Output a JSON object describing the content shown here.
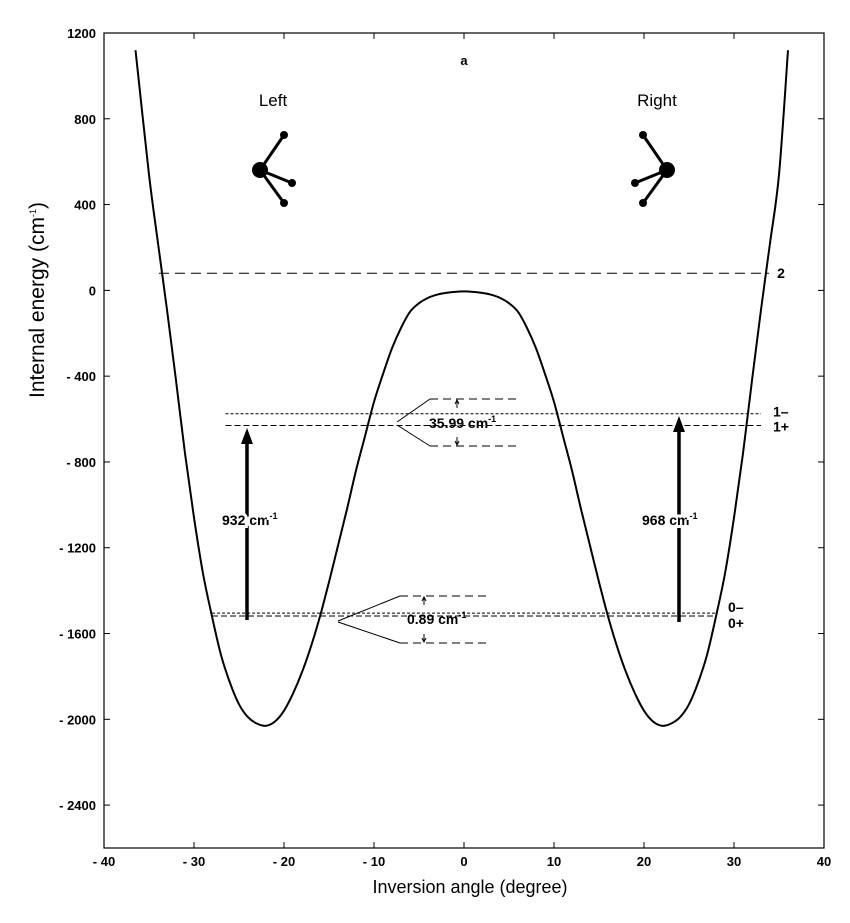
{
  "chart_data": {
    "type": "line",
    "title": "a",
    "xlabel": "Inversion  angle (degree)",
    "ylabel": "Internal energy (cm",
    "ylabel_sup": "-1",
    "ylabel_close": ")",
    "xlim": [
      -40,
      40
    ],
    "ylim": [
      -2600,
      1200
    ],
    "x_ticks": [
      -40,
      -30,
      -20,
      -10,
      0,
      10,
      20,
      30,
      40
    ],
    "x_tick_labels": [
      "- 40",
      "- 30",
      "- 20",
      "- 10",
      "0",
      "10",
      "20",
      "30",
      "40"
    ],
    "y_ticks": [
      1200,
      800,
      400,
      0,
      -400,
      -800,
      -1200,
      -1600,
      -2000,
      -2400
    ],
    "y_tick_labels": [
      "1200",
      "800",
      "400",
      "0",
      "- 400",
      "- 800",
      "- 1200",
      "- 1600",
      "- 2000",
      "- 2400"
    ],
    "grid": false,
    "series": [
      {
        "x": [
          -36.5,
          -35,
          -34,
          -33,
          -32,
          -31,
          -30,
          -29,
          -28,
          -27,
          -26,
          -25,
          -24,
          -23,
          -22,
          -21,
          -20,
          -19,
          -18,
          -17,
          -16,
          -15,
          -14,
          -13,
          -12,
          -11,
          -10,
          -9,
          -8,
          -7,
          -6,
          -5,
          -4,
          -3,
          -2,
          -1,
          0,
          1,
          2,
          3,
          4,
          5,
          6,
          7,
          8,
          9,
          10,
          11,
          12,
          13,
          14,
          15,
          16,
          17,
          18,
          19,
          20,
          21,
          22,
          23,
          24,
          25,
          26,
          27,
          28,
          29,
          30,
          31,
          32,
          33,
          34,
          35,
          36
        ],
        "y": [
          1120,
          540,
          220,
          -90,
          -420,
          -760,
          -1060,
          -1320,
          -1520,
          -1700,
          -1830,
          -1930,
          -1990,
          -2020,
          -2030,
          -2010,
          -1960,
          -1880,
          -1780,
          -1660,
          -1520,
          -1360,
          -1190,
          -1020,
          -840,
          -680,
          -520,
          -390,
          -270,
          -175,
          -100,
          -60,
          -35,
          -20,
          -12,
          -7,
          -5,
          -7,
          -12,
          -20,
          -35,
          -60,
          -100,
          -175,
          -270,
          -390,
          -520,
          -680,
          -840,
          -1020,
          -1190,
          -1360,
          -1520,
          -1660,
          -1780,
          -1880,
          -1960,
          -2010,
          -2030,
          -2020,
          -1990,
          -1930,
          -1830,
          -1700,
          -1520,
          -1320,
          -1060,
          -760,
          -420,
          -90,
          220,
          540,
          1120
        ]
      }
    ],
    "levels": [
      {
        "label": "2",
        "energy": 80,
        "x_from": -33.9,
        "x_to": 33.9
      },
      {
        "label": "1–",
        "energy": -575,
        "x_from": -26.5,
        "x_to": 33.0
      },
      {
        "label": "1+",
        "energy": -630,
        "x_from": -26.5,
        "x_to": 33.0
      },
      {
        "label": "0–",
        "energy": -1505,
        "x_from": -28.0,
        "x_to": 28.0
      },
      {
        "label": "0+",
        "energy": -1518,
        "x_from": -28.0,
        "x_to": 28.0
      }
    ],
    "annotations": [
      {
        "text": "932 cm",
        "sup": "-1"
      },
      {
        "text": "968 cm",
        "sup": "-1"
      },
      {
        "text": "35.99 cm",
        "sup": "-1"
      },
      {
        "text": "0.89 cm",
        "sup": "-1"
      },
      {
        "text": "Left"
      },
      {
        "text": "Right"
      }
    ]
  }
}
